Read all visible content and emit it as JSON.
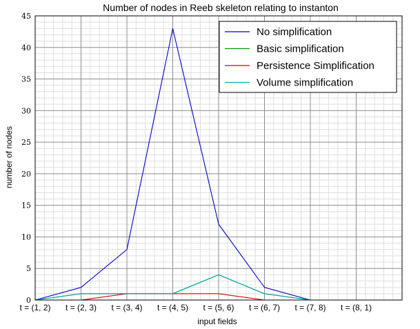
{
  "chart_data": {
    "type": "line",
    "title": "Number of nodes in Reeb skeleton relating to instanton",
    "xlabel": "input fields",
    "ylabel": "number of nodes",
    "categories": [
      "t = (1, 2)",
      "t = (2, 3)",
      "t = (3, 4)",
      "t = (4, 5)",
      "t = (5, 6)",
      "t = (6, 7)",
      "t = (7, 8)",
      "t = (8, 1)"
    ],
    "ylim": [
      0,
      45
    ],
    "yticks": [
      "0",
      "5",
      "10",
      "15",
      "20",
      "25",
      "30",
      "35",
      "40",
      "45"
    ],
    "grid": true,
    "legend_position": "top-right",
    "series": [
      {
        "name": "No simplification",
        "color": "#0000cc",
        "values": [
          0,
          2,
          8,
          43,
          12,
          2,
          0,
          null
        ]
      },
      {
        "name": "Basic simplification",
        "color": "#009900",
        "values": [
          0,
          1,
          1,
          1,
          4,
          1,
          0,
          null
        ]
      },
      {
        "name": "Persistence Simplification",
        "color": "#dd0000",
        "values": [
          0,
          0,
          1,
          1,
          1,
          0,
          0,
          null
        ]
      },
      {
        "name": "Volume simplification",
        "color": "#00aaaa",
        "values": [
          0,
          1,
          1,
          1,
          4,
          1,
          0,
          null
        ]
      }
    ]
  }
}
